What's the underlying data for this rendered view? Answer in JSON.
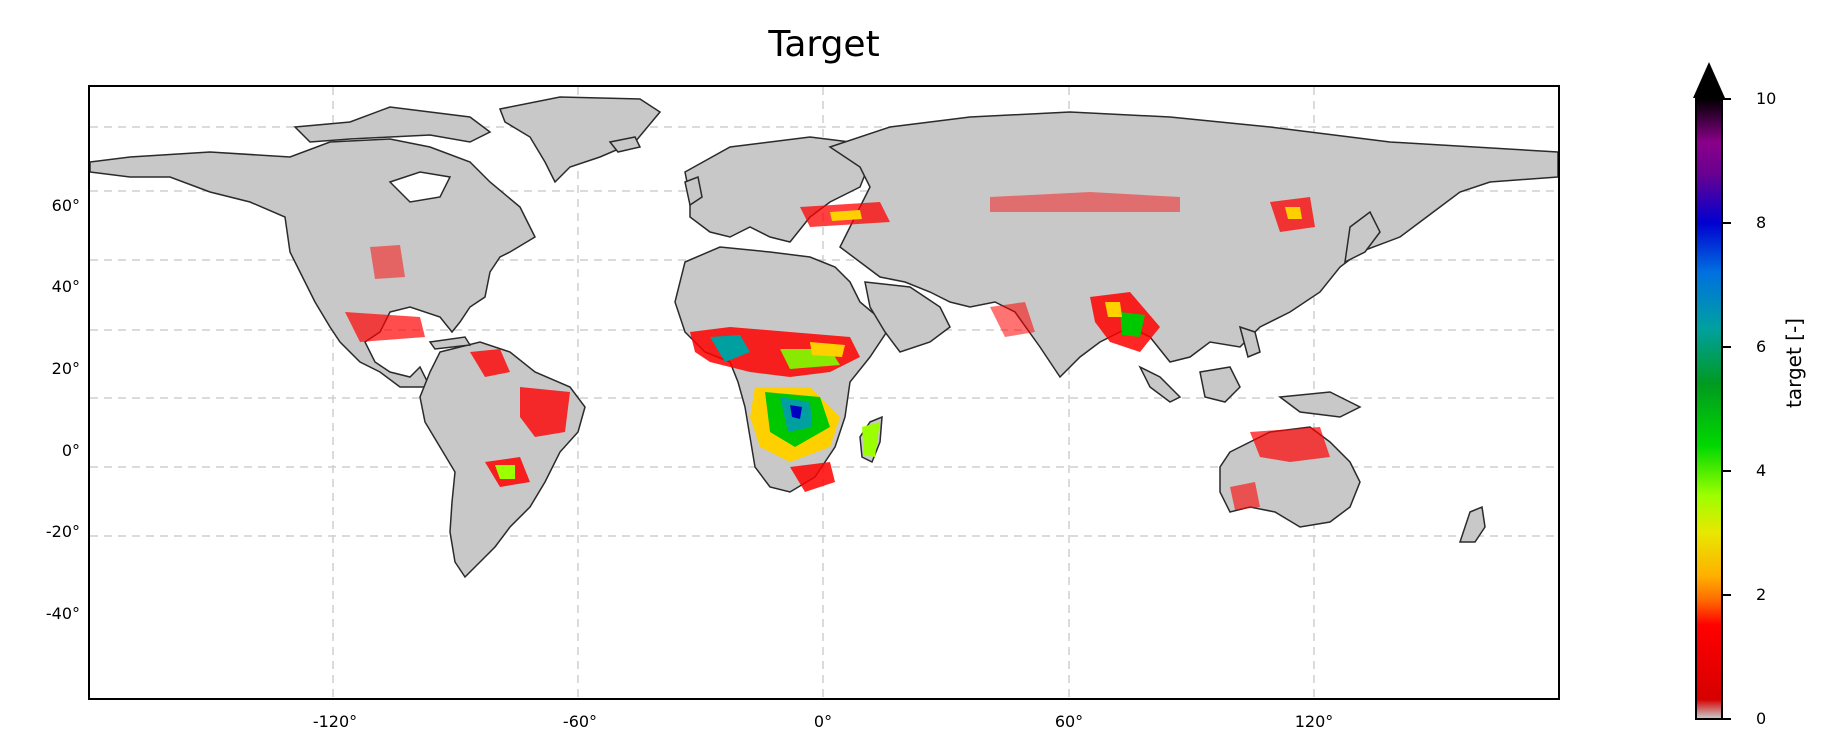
{
  "title": "Target",
  "map_data": {
    "projection": "PlateCarree",
    "lon_ticks": [
      "-120°",
      "-60°",
      "0°",
      "60°",
      "120°"
    ],
    "lat_ticks": [
      "60°",
      "40°",
      "20°",
      "0°",
      "-20°",
      "-40°"
    ],
    "land_color": "#c8c8c8",
    "coastline_color": "#222222",
    "gridlines": "dashed"
  },
  "colorbar": {
    "label": "target [-]",
    "ticks": [
      "0",
      "2",
      "4",
      "6",
      "8",
      "10"
    ],
    "extend": "max",
    "colormap": "nipy_spectral-like"
  }
}
